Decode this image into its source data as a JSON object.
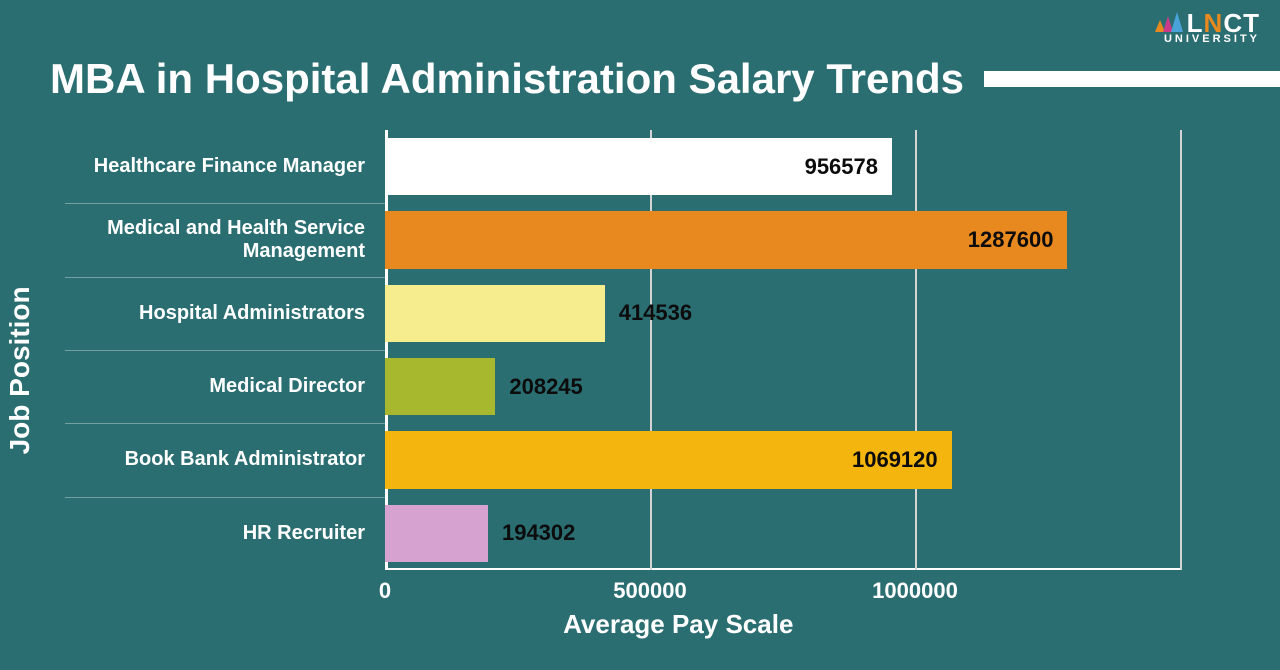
{
  "background_color": "#2a6e72",
  "logo": {
    "text_main": "LNCT",
    "text_sub": "UNIVERSITY",
    "n_color": "#e8891f",
    "text_color": "#ffffff",
    "tri_colors": [
      "#e8891f",
      "#c93a8a",
      "#4aa3d8"
    ]
  },
  "title": {
    "text": "MBA in Hospital Administration Salary Trends",
    "color": "#ffffff",
    "bar_color": "#ffffff"
  },
  "chart": {
    "type": "bar-horizontal",
    "y_axis_label": "Job Position",
    "x_axis_label": "Average Pay Scale",
    "axis_label_color": "#ffffff",
    "category_label_color": "#ffffff",
    "axis_line_color": "#ffffff",
    "gridline_color": "#d4d4d4",
    "tick_label_color": "#ffffff",
    "xlim": [
      0,
      1500000
    ],
    "xticks": [
      0,
      500000,
      1000000
    ],
    "gridlines_at": [
      500000,
      1000000,
      1500000
    ],
    "bars": [
      {
        "label": "Healthcare Finance Manager",
        "value": 956578,
        "color": "#ffffff",
        "value_color": "#0c0c0c",
        "value_inside": true
      },
      {
        "label": "Medical and Health Service Management",
        "value": 1287600,
        "color": "#e8891f",
        "value_color": "#0c0c0c",
        "value_inside": true
      },
      {
        "label": "Hospital Administrators",
        "value": 414536,
        "color": "#f6ed8f",
        "value_color": "#0c0c0c",
        "value_inside": false
      },
      {
        "label": "Medical Director",
        "value": 208245,
        "color": "#a8b82e",
        "value_color": "#0c0c0c",
        "value_inside": false
      },
      {
        "label": "Book Bank Administrator",
        "value": 1069120,
        "color": "#f4b50e",
        "value_color": "#0c0c0c",
        "value_inside": true
      },
      {
        "label": "HR Recruiter",
        "value": 194302,
        "color": "#d6a2d0",
        "value_color": "#0c0c0c",
        "value_inside": false
      }
    ]
  }
}
